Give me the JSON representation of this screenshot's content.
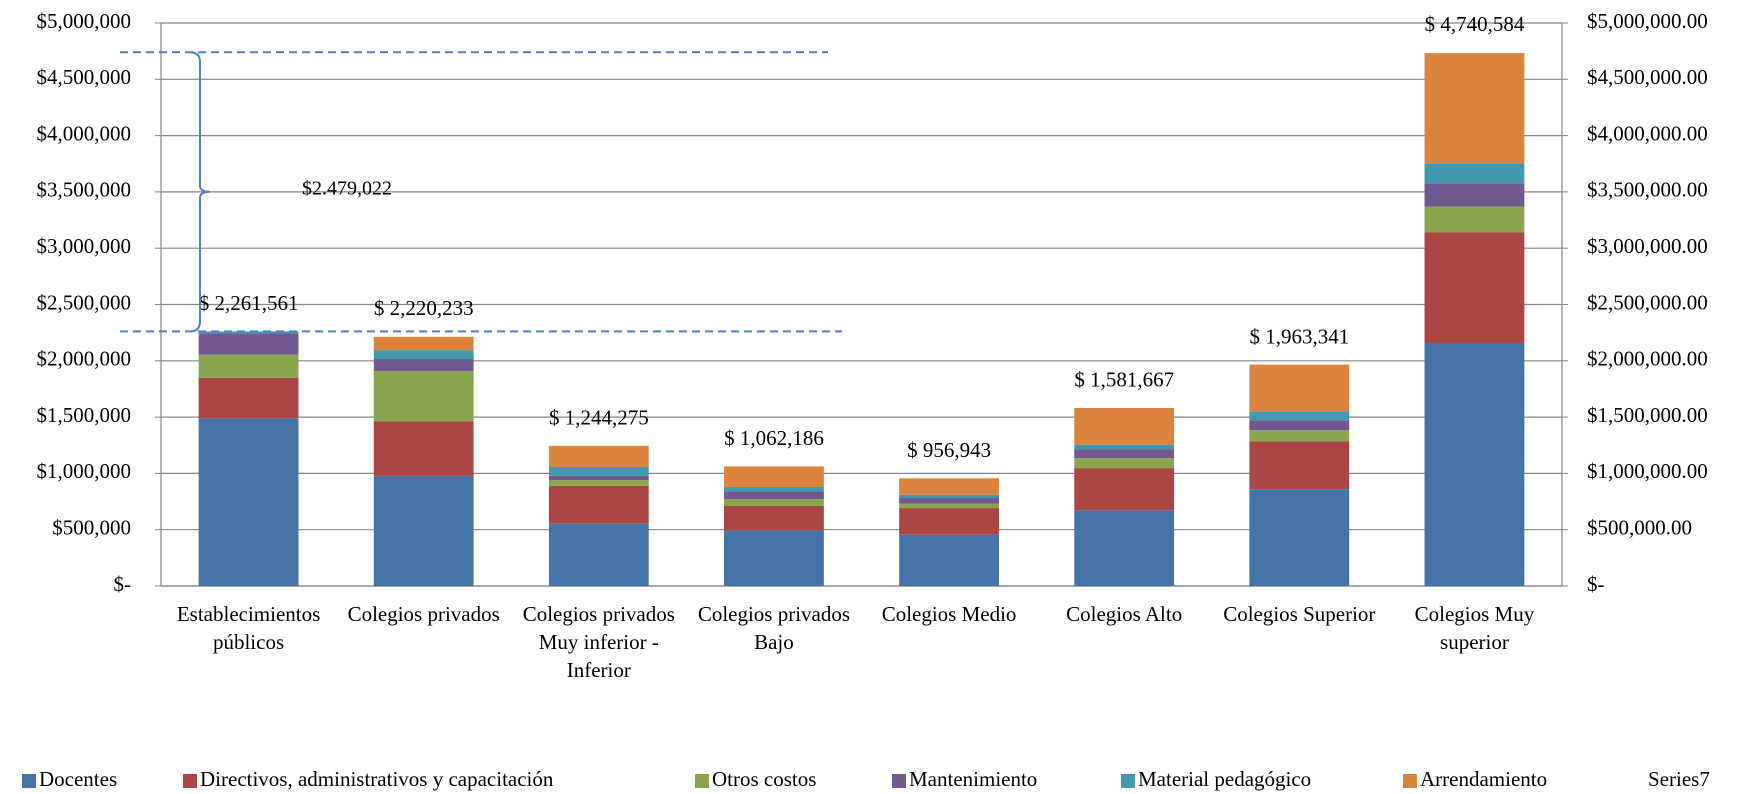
{
  "chart_data": {
    "type": "stacked_bar",
    "categories": [
      "Establecimientos públicos",
      "Colegios privados",
      "Colegios privados Muy inferior - Inferior",
      "Colegios privados Bajo",
      "Colegios Medio",
      "Colegios Alto",
      "Colegios Superior",
      "Colegios Muy superior"
    ],
    "series": [
      {
        "name": "Docentes",
        "color": "#4572a7",
        "values": [
          1490000,
          978000,
          553000,
          494000,
          455000,
          672000,
          860000,
          2154000
        ]
      },
      {
        "name": "Directivos, administrativos y capacitación",
        "color": "#aa4643",
        "values": [
          358000,
          484000,
          336000,
          217000,
          237000,
          375000,
          425000,
          988000
        ]
      },
      {
        "name": "Otros costos",
        "color": "#89a54e",
        "values": [
          207000,
          445000,
          50000,
          60000,
          39000,
          89000,
          98000,
          228000
        ]
      },
      {
        "name": "Mantenimiento",
        "color": "#71588f",
        "values": [
          188000,
          109000,
          39000,
          69000,
          50000,
          79000,
          89000,
          207000
        ]
      },
      {
        "name": "Material pedagógico",
        "color": "#4198af",
        "values": [
          18000,
          79000,
          79000,
          39000,
          29000,
          40000,
          79000,
          178000
        ]
      },
      {
        "name": "Arrendamiento",
        "color": "#db843d",
        "values": [
          0,
          118000,
          188000,
          183000,
          147000,
          326000,
          415000,
          978000
        ]
      },
      {
        "name": "Series7",
        "values": [
          2261561,
          2220233,
          1244275,
          1062186,
          956943,
          1581667,
          1963341,
          4740584
        ],
        "value_labels": [
          "$ 2,261,561",
          "$ 2,220,233",
          "$ 1,244,275",
          "$ 1,062,186",
          "$ 956,943",
          "$ 1,581,667",
          "$ 1,963,341",
          "$ 4,740,584"
        ]
      }
    ],
    "ylim": [
      0,
      5000000
    ],
    "yticks": [
      {
        "value": 0,
        "label": "$-"
      },
      {
        "value": 500000,
        "label": "$500,000"
      },
      {
        "value": 1000000,
        "label": "$1,000,000"
      },
      {
        "value": 1500000,
        "label": "$1,500,000"
      },
      {
        "value": 2000000,
        "label": "$2,000,000"
      },
      {
        "value": 2500000,
        "label": "$2,500,000"
      },
      {
        "value": 3000000,
        "label": "$3,000,000"
      },
      {
        "value": 3500000,
        "label": "$3,500,000"
      },
      {
        "value": 4000000,
        "label": "$4,000,000"
      },
      {
        "value": 4500000,
        "label": "$4,500,000"
      },
      {
        "value": 5000000,
        "label": "$5,000,000"
      }
    ],
    "y2lim": [
      0,
      5000000
    ],
    "y2ticks": [
      {
        "value": 0,
        "label": "$-"
      },
      {
        "value": 500000,
        "label": "$500,000.00"
      },
      {
        "value": 1000000,
        "label": "$1,000,000.00"
      },
      {
        "value": 1500000,
        "label": "$1,500,000.00"
      },
      {
        "value": 2000000,
        "label": "$2,000,000.00"
      },
      {
        "value": 2500000,
        "label": "$2,500,000.00"
      },
      {
        "value": 3000000,
        "label": "$3,000,000.00"
      },
      {
        "value": 3500000,
        "label": "$3,500,000.00"
      },
      {
        "value": 4000000,
        "label": "$4,000,000.00"
      },
      {
        "value": 4500000,
        "label": "$4,500,000.00"
      },
      {
        "value": 5000000,
        "label": "$5,000,000.00"
      }
    ],
    "grid": true,
    "legend": "bottom",
    "annotation": "$2.479,022"
  }
}
